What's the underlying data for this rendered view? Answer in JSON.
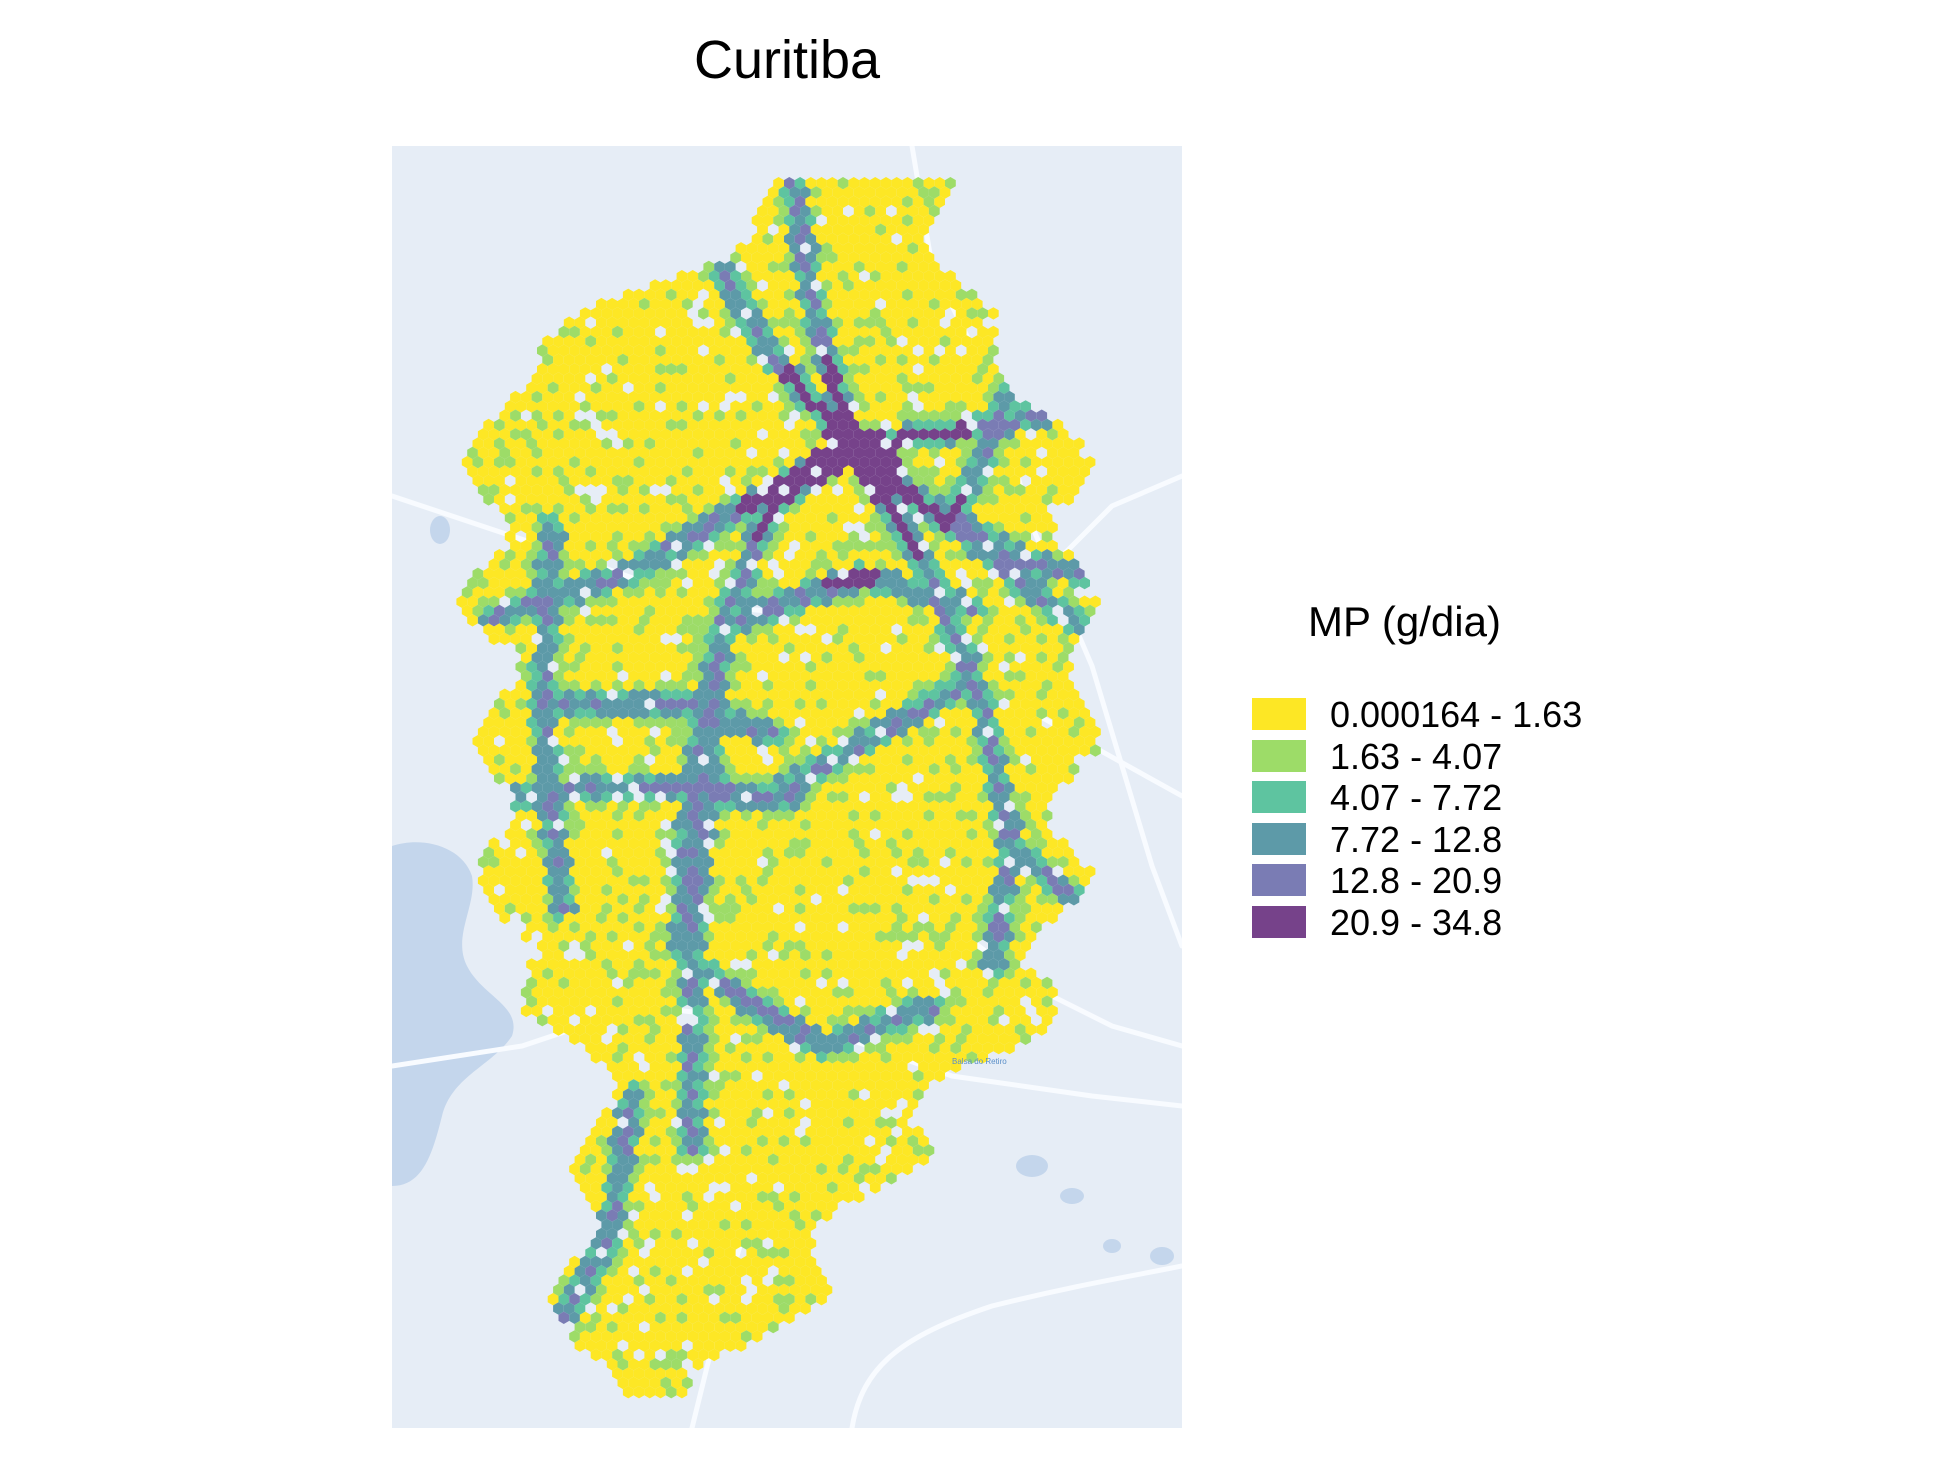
{
  "title": "Curitiba",
  "basemap": {
    "place_label": "Balsa do Retiro",
    "land_color": "#e6edf6",
    "water_color": "#c4d6ec",
    "road_color": "#f8fbff"
  },
  "legend": {
    "title": "MP (g/dia)",
    "items": [
      {
        "label": "0.000164 - 1.63",
        "color": "#fde725"
      },
      {
        "label": "1.63 - 4.07",
        "color": "#9ddc68"
      },
      {
        "label": "4.07 - 7.72",
        "color": "#5ec4a0"
      },
      {
        "label": "7.72 - 12.8",
        "color": "#5d9aa8"
      },
      {
        "label": "12.8 - 20.9",
        "color": "#7a7cb4"
      },
      {
        "label": "20.9 - 34.8",
        "color": "#76428a"
      }
    ]
  }
}
